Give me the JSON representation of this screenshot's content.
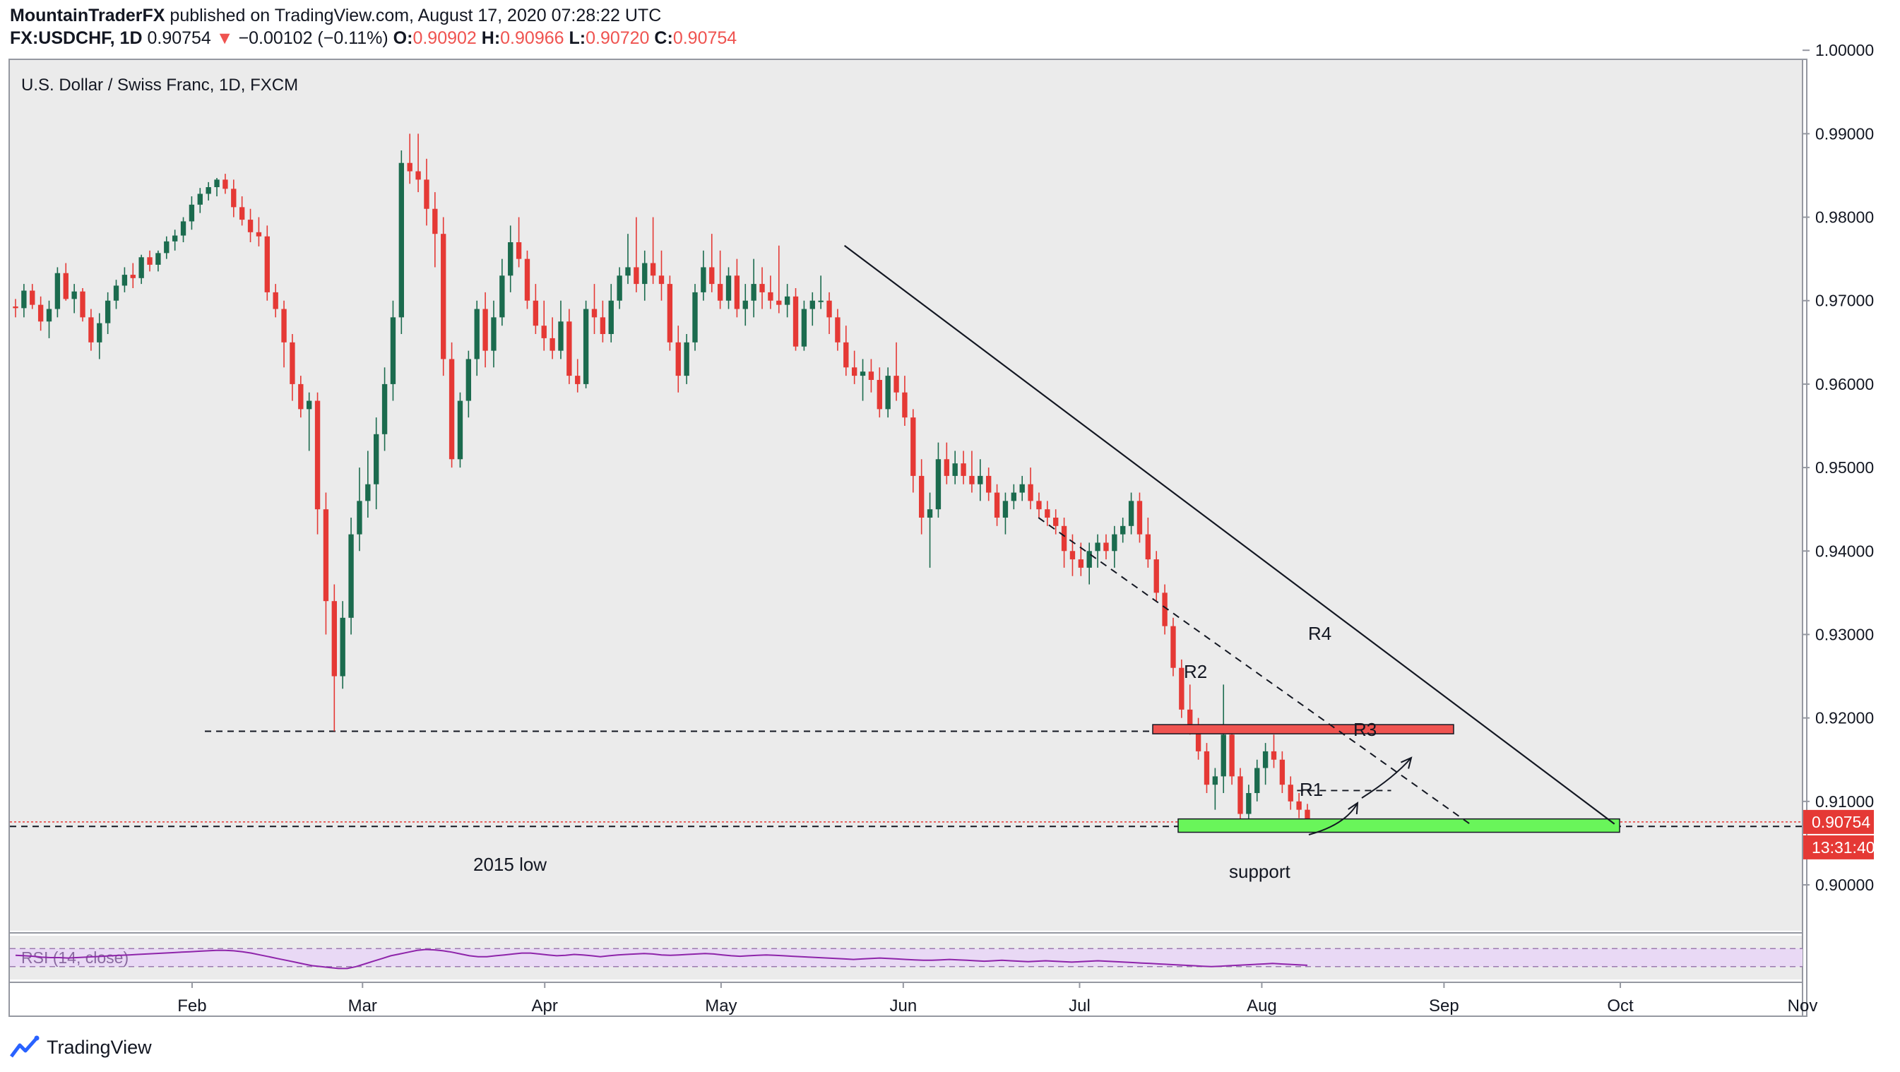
{
  "header": {
    "author": "MountainTraderFX",
    "published": " published on TradingView.com, August 17, 2020 07:28:22 UTC",
    "symbol": "FX:USDCHF, 1D",
    "last": "0.90754",
    "change_arrow": "▼",
    "change": "−0.00102 (−0.11%)",
    "o_label": "O:",
    "o_value": "0.90902",
    "h_label": "H:",
    "h_value": "0.90966",
    "l_label": "L:",
    "l_value": "0.90720",
    "c_label": "C:",
    "c_value": "0.90754"
  },
  "colors": {
    "up": "#1b6b4e",
    "down": "#e53935",
    "resistance_zone": "#ef5350",
    "support_zone": "#69f55a",
    "rsi_band": "#e9d9f5",
    "rsi_line": "#8e24aa",
    "price_tag": "#e53935"
  },
  "chart_data": {
    "type": "candlestick",
    "title": "U.S. Dollar / Swiss Franc, 1D, FXCM",
    "y_axis": {
      "range": [
        0.8945,
        1.0012
      ],
      "ticks": [
        "1.00000",
        "0.99000",
        "0.98000",
        "0.97000",
        "0.96000",
        "0.95000",
        "0.94000",
        "0.93000",
        "0.92000",
        "0.91000",
        "0.90000"
      ],
      "tick_values": [
        1.0,
        0.99,
        0.98,
        0.97,
        0.96,
        0.95,
        0.94,
        0.93,
        0.92,
        0.91,
        0.9
      ]
    },
    "x_axis": {
      "ticks": [
        "Feb",
        "Mar",
        "Apr",
        "May",
        "Jun",
        "Jul",
        "Aug",
        "Sep",
        "Oct",
        "Nov"
      ],
      "tick_dates": [
        "2020-02-01",
        "2020-03-01",
        "2020-04-01",
        "2020-05-01",
        "2020-06-01",
        "2020-07-01",
        "2020-08-01",
        "2020-09-01",
        "2020-10-01",
        "2020-11-01"
      ],
      "range": [
        "2020-01-01",
        "2020-11-01"
      ]
    },
    "last_price_label": "0.90754",
    "countdown_label": "13:31:40",
    "annotations": {
      "r4": "R4",
      "r3": "R3",
      "r2": "R2",
      "r1": "R1",
      "low_2015": "2015 low",
      "support": "support"
    },
    "levels": {
      "march_low": 0.9184,
      "low_2015_line": 0.907,
      "last_price": 0.90754,
      "resistance_zone": [
        0.9181,
        0.9192
      ],
      "support_zone": [
        0.9063,
        0.9079
      ]
    },
    "trendlines": {
      "r4": {
        "from": [
          "2020-05-22",
          0.9766
        ],
        "to": [
          "2020-09-30",
          0.9073
        ]
      },
      "r2": {
        "from": [
          "2020-06-24",
          0.944
        ],
        "to": [
          "2020-09-06",
          0.907
        ]
      },
      "r1": {
        "from": [
          "2020-08-07",
          0.9113
        ],
        "to": [
          "2020-08-23",
          0.9113
        ]
      }
    },
    "candles": [
      [
        0.9693,
        0.9702,
        0.968,
        0.9691
      ],
      [
        0.9691,
        0.972,
        0.968,
        0.9712
      ],
      [
        0.9712,
        0.972,
        0.969,
        0.9695
      ],
      [
        0.9695,
        0.9705,
        0.9664,
        0.9675
      ],
      [
        0.9675,
        0.97,
        0.9655,
        0.969
      ],
      [
        0.969,
        0.974,
        0.968,
        0.9733
      ],
      [
        0.9733,
        0.9745,
        0.97,
        0.9702
      ],
      [
        0.9702,
        0.972,
        0.9685,
        0.9711
      ],
      [
        0.9711,
        0.9715,
        0.9675,
        0.968
      ],
      [
        0.968,
        0.969,
        0.964,
        0.965
      ],
      [
        0.965,
        0.9685,
        0.963,
        0.9673
      ],
      [
        0.9673,
        0.971,
        0.966,
        0.97
      ],
      [
        0.97,
        0.9725,
        0.969,
        0.9718
      ],
      [
        0.9718,
        0.974,
        0.971,
        0.9731
      ],
      [
        0.9731,
        0.9745,
        0.9715,
        0.9727
      ],
      [
        0.9727,
        0.9755,
        0.972,
        0.9752
      ],
      [
        0.9752,
        0.976,
        0.9735,
        0.9743
      ],
      [
        0.9743,
        0.976,
        0.9735,
        0.9757
      ],
      [
        0.9757,
        0.9777,
        0.975,
        0.9771
      ],
      [
        0.9771,
        0.9785,
        0.976,
        0.9778
      ],
      [
        0.9778,
        0.98,
        0.977,
        0.9795
      ],
      [
        0.9795,
        0.9825,
        0.9785,
        0.9815
      ],
      [
        0.9815,
        0.9835,
        0.9805,
        0.9828
      ],
      [
        0.9828,
        0.9842,
        0.982,
        0.9836
      ],
      [
        0.9836,
        0.9847,
        0.9825,
        0.9845
      ],
      [
        0.9845,
        0.9852,
        0.9828,
        0.9834
      ],
      [
        0.9834,
        0.9845,
        0.98,
        0.9812
      ],
      [
        0.9812,
        0.9825,
        0.979,
        0.9797
      ],
      [
        0.9797,
        0.981,
        0.977,
        0.9782
      ],
      [
        0.9782,
        0.98,
        0.9765,
        0.9777
      ],
      [
        0.9777,
        0.979,
        0.97,
        0.971
      ],
      [
        0.971,
        0.972,
        0.968,
        0.969
      ],
      [
        0.969,
        0.97,
        0.962,
        0.965
      ],
      [
        0.965,
        0.966,
        0.958,
        0.96
      ],
      [
        0.96,
        0.961,
        0.956,
        0.957
      ],
      [
        0.957,
        0.959,
        0.952,
        0.958
      ],
      [
        0.958,
        0.959,
        0.942,
        0.945
      ],
      [
        0.945,
        0.947,
        0.93,
        0.934
      ],
      [
        0.934,
        0.936,
        0.9184,
        0.925
      ],
      [
        0.925,
        0.934,
        0.9235,
        0.932
      ],
      [
        0.932,
        0.944,
        0.93,
        0.942
      ],
      [
        0.942,
        0.95,
        0.94,
        0.946
      ],
      [
        0.946,
        0.952,
        0.944,
        0.948
      ],
      [
        0.948,
        0.956,
        0.945,
        0.954
      ],
      [
        0.954,
        0.962,
        0.952,
        0.96
      ],
      [
        0.96,
        0.97,
        0.958,
        0.968
      ],
      [
        0.968,
        0.988,
        0.966,
        0.9865
      ],
      [
        0.9865,
        0.99,
        0.984,
        0.9855
      ],
      [
        0.9855,
        0.99,
        0.983,
        0.9845
      ],
      [
        0.9845,
        0.987,
        0.979,
        0.981
      ],
      [
        0.981,
        0.983,
        0.974,
        0.978
      ],
      [
        0.978,
        0.98,
        0.961,
        0.963
      ],
      [
        0.963,
        0.965,
        0.95,
        0.951
      ],
      [
        0.951,
        0.959,
        0.95,
        0.958
      ],
      [
        0.958,
        0.964,
        0.956,
        0.963
      ],
      [
        0.963,
        0.97,
        0.961,
        0.969
      ],
      [
        0.969,
        0.971,
        0.962,
        0.964
      ],
      [
        0.964,
        0.97,
        0.962,
        0.968
      ],
      [
        0.968,
        0.975,
        0.967,
        0.973
      ],
      [
        0.973,
        0.979,
        0.971,
        0.977
      ],
      [
        0.977,
        0.98,
        0.974,
        0.975
      ],
      [
        0.975,
        0.976,
        0.969,
        0.97
      ],
      [
        0.97,
        0.972,
        0.966,
        0.967
      ],
      [
        0.967,
        0.97,
        0.964,
        0.9655
      ],
      [
        0.9655,
        0.968,
        0.963,
        0.964
      ],
      [
        0.964,
        0.97,
        0.963,
        0.9675
      ],
      [
        0.9675,
        0.969,
        0.96,
        0.961
      ],
      [
        0.961,
        0.963,
        0.959,
        0.96
      ],
      [
        0.96,
        0.97,
        0.9595,
        0.969
      ],
      [
        0.969,
        0.972,
        0.966,
        0.968
      ],
      [
        0.968,
        0.97,
        0.965,
        0.966
      ],
      [
        0.966,
        0.972,
        0.965,
        0.97
      ],
      [
        0.97,
        0.974,
        0.969,
        0.973
      ],
      [
        0.973,
        0.978,
        0.972,
        0.974
      ],
      [
        0.974,
        0.98,
        0.971,
        0.972
      ],
      [
        0.972,
        0.976,
        0.97,
        0.9745
      ],
      [
        0.9745,
        0.98,
        0.972,
        0.973
      ],
      [
        0.973,
        0.976,
        0.97,
        0.972
      ],
      [
        0.972,
        0.973,
        0.964,
        0.965
      ],
      [
        0.965,
        0.967,
        0.959,
        0.961
      ],
      [
        0.961,
        0.966,
        0.96,
        0.965
      ],
      [
        0.965,
        0.972,
        0.964,
        0.971
      ],
      [
        0.971,
        0.976,
        0.97,
        0.974
      ],
      [
        0.974,
        0.978,
        0.971,
        0.972
      ],
      [
        0.972,
        0.976,
        0.969,
        0.97
      ],
      [
        0.97,
        0.974,
        0.969,
        0.973
      ],
      [
        0.973,
        0.975,
        0.968,
        0.969
      ],
      [
        0.969,
        0.972,
        0.967,
        0.97
      ],
      [
        0.97,
        0.975,
        0.968,
        0.972
      ],
      [
        0.972,
        0.974,
        0.969,
        0.971
      ],
      [
        0.971,
        0.973,
        0.969,
        0.97
      ],
      [
        0.97,
        0.9766,
        0.9685,
        0.9695
      ],
      [
        0.9695,
        0.972,
        0.968,
        0.9705
      ],
      [
        0.9705,
        0.9715,
        0.964,
        0.9645
      ],
      [
        0.9645,
        0.97,
        0.964,
        0.969
      ],
      [
        0.969,
        0.971,
        0.967,
        0.97
      ],
      [
        0.97,
        0.973,
        0.969,
        0.97
      ],
      [
        0.97,
        0.971,
        0.966,
        0.968
      ],
      [
        0.968,
        0.969,
        0.964,
        0.965
      ],
      [
        0.965,
        0.967,
        0.961,
        0.962
      ],
      [
        0.962,
        0.964,
        0.96,
        0.961
      ],
      [
        0.961,
        0.963,
        0.958,
        0.9615
      ],
      [
        0.9615,
        0.963,
        0.959,
        0.9605
      ],
      [
        0.9605,
        0.962,
        0.956,
        0.957
      ],
      [
        0.957,
        0.962,
        0.956,
        0.961
      ],
      [
        0.961,
        0.965,
        0.958,
        0.959
      ],
      [
        0.959,
        0.961,
        0.955,
        0.956
      ],
      [
        0.956,
        0.957,
        0.947,
        0.949
      ],
      [
        0.949,
        0.951,
        0.942,
        0.944
      ],
      [
        0.944,
        0.947,
        0.938,
        0.945
      ],
      [
        0.945,
        0.953,
        0.944,
        0.951
      ],
      [
        0.951,
        0.953,
        0.948,
        0.949
      ],
      [
        0.949,
        0.952,
        0.948,
        0.9505
      ],
      [
        0.9505,
        0.952,
        0.948,
        0.949
      ],
      [
        0.949,
        0.952,
        0.947,
        0.948
      ],
      [
        0.948,
        0.951,
        0.946,
        0.949
      ],
      [
        0.949,
        0.95,
        0.946,
        0.947
      ],
      [
        0.947,
        0.948,
        0.943,
        0.944
      ],
      [
        0.944,
        0.947,
        0.942,
        0.946
      ],
      [
        0.946,
        0.948,
        0.945,
        0.947
      ],
      [
        0.947,
        0.949,
        0.946,
        0.948
      ],
      [
        0.948,
        0.95,
        0.945,
        0.946
      ],
      [
        0.946,
        0.947,
        0.944,
        0.945
      ],
      [
        0.945,
        0.946,
        0.943,
        0.944
      ],
      [
        0.944,
        0.945,
        0.942,
        0.943
      ],
      [
        0.943,
        0.944,
        0.938,
        0.94
      ],
      [
        0.94,
        0.942,
        0.937,
        0.939
      ],
      [
        0.939,
        0.941,
        0.937,
        0.938
      ],
      [
        0.938,
        0.941,
        0.936,
        0.94
      ],
      [
        0.94,
        0.942,
        0.938,
        0.941
      ],
      [
        0.941,
        0.942,
        0.939,
        0.94
      ],
      [
        0.94,
        0.943,
        0.938,
        0.942
      ],
      [
        0.942,
        0.944,
        0.941,
        0.943
      ],
      [
        0.943,
        0.947,
        0.942,
        0.946
      ],
      [
        0.946,
        0.947,
        0.941,
        0.942
      ],
      [
        0.942,
        0.944,
        0.938,
        0.939
      ],
      [
        0.939,
        0.94,
        0.934,
        0.935
      ],
      [
        0.935,
        0.936,
        0.93,
        0.931
      ],
      [
        0.931,
        0.932,
        0.925,
        0.926
      ],
      [
        0.926,
        0.927,
        0.92,
        0.921
      ],
      [
        0.921,
        0.924,
        0.918,
        0.919
      ],
      [
        0.919,
        0.92,
        0.915,
        0.916
      ],
      [
        0.916,
        0.917,
        0.911,
        0.912
      ],
      [
        0.912,
        0.914,
        0.909,
        0.913
      ],
      [
        0.913,
        0.924,
        0.911,
        0.918
      ],
      [
        0.918,
        0.919,
        0.912,
        0.913
      ],
      [
        0.913,
        0.914,
        0.9075,
        0.9085
      ],
      [
        0.9085,
        0.912,
        0.907,
        0.911
      ],
      [
        0.911,
        0.915,
        0.91,
        0.914
      ],
      [
        0.914,
        0.917,
        0.912,
        0.916
      ],
      [
        0.916,
        0.918,
        0.914,
        0.915
      ],
      [
        0.915,
        0.916,
        0.911,
        0.912
      ],
      [
        0.912,
        0.913,
        0.909,
        0.91
      ],
      [
        0.91,
        0.911,
        0.908,
        0.909
      ],
      [
        0.909,
        0.9097,
        0.9072,
        0.9075
      ]
    ],
    "rsi": {
      "label": "RSI (14, close)",
      "range": [
        0,
        100
      ],
      "band": [
        30,
        70
      ],
      "values": [
        55,
        54,
        53,
        51,
        50,
        50,
        49,
        50,
        51,
        52,
        53,
        54,
        55,
        56,
        57,
        58,
        59,
        60,
        61,
        62,
        63,
        64,
        65,
        66,
        66,
        65,
        63,
        60,
        56,
        52,
        48,
        44,
        40,
        36,
        32,
        30,
        28,
        26,
        26,
        30,
        36,
        42,
        48,
        54,
        58,
        62,
        66,
        68,
        67,
        65,
        62,
        58,
        54,
        52,
        52,
        54,
        56,
        58,
        60,
        60,
        58,
        56,
        54,
        55,
        57,
        56,
        54,
        52,
        54,
        56,
        57,
        58,
        59,
        58,
        56,
        55,
        56,
        57,
        58,
        59,
        58,
        56,
        54,
        53,
        54,
        55,
        56,
        55,
        54,
        53,
        52,
        51,
        50,
        49,
        48,
        47,
        46,
        47,
        48,
        49,
        48,
        47,
        46,
        45,
        44,
        44,
        45,
        46,
        45,
        44,
        43,
        42,
        43,
        44,
        43,
        42,
        41,
        42,
        43,
        42,
        41,
        40,
        41,
        42,
        43,
        42,
        41,
        40,
        39,
        38,
        37,
        36,
        35,
        34,
        33,
        32,
        31,
        30,
        31,
        32,
        33,
        34,
        35,
        36,
        37,
        36,
        35,
        34,
        33
      ]
    }
  },
  "brand": "TradingView"
}
